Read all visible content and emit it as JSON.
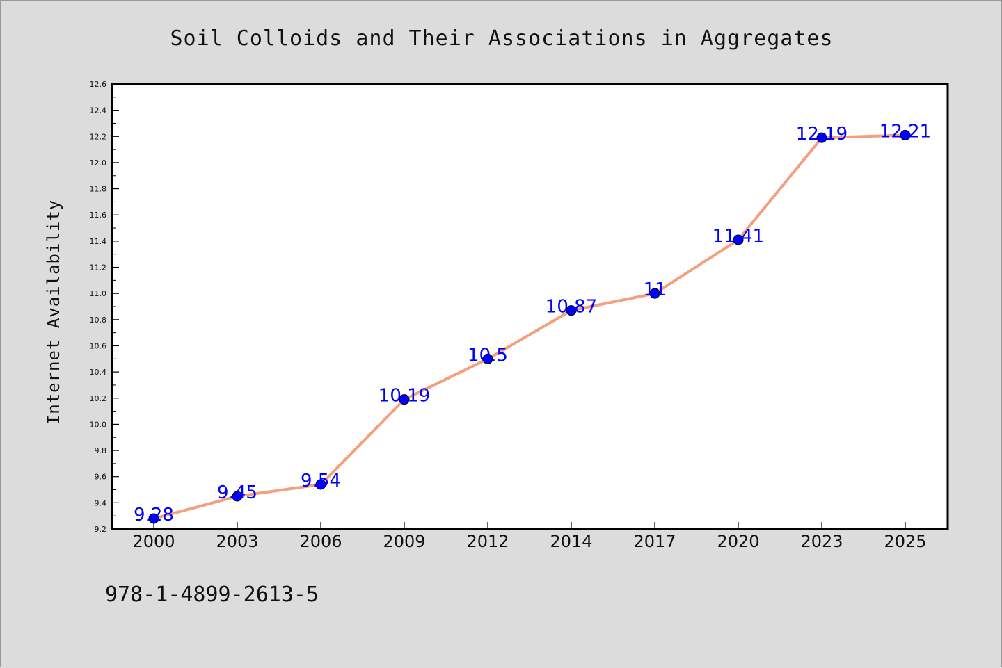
{
  "chart_data": {
    "type": "line",
    "title": "Soil Colloids and Their Associations in Aggregates",
    "xlabel": "",
    "ylabel": "Internet Availability",
    "categories": [
      "2000",
      "2003",
      "2006",
      "2009",
      "2012",
      "2014",
      "2017",
      "2020",
      "2023",
      "2025"
    ],
    "series": [
      {
        "values": [
          9.28,
          9.45,
          9.54,
          10.19,
          10.5,
          10.87,
          11,
          11.41,
          12.19,
          12.21
        ],
        "data_labels": [
          "9.28",
          "9.45",
          "9.54",
          "10.19",
          "10.5",
          "10.87",
          "11",
          "11.41",
          "12.19",
          "12.21"
        ]
      }
    ],
    "ylim": [
      9.2,
      12.6
    ],
    "yticks": [
      "9.2",
      "9.4",
      "9.6",
      "9.8",
      "10.0",
      "10.2",
      "10.4",
      "10.6",
      "10.8",
      "11.0",
      "11.2",
      "11.4",
      "11.6",
      "11.8",
      "12.0",
      "12.2",
      "12.4",
      "12.6"
    ],
    "grid": false,
    "colors": {
      "line": "#f4a07e",
      "marker": "#0000ff",
      "data_label": "#0000ff",
      "plot_background": "#ffffff",
      "page_background": "#dcdcdc"
    }
  },
  "footer": {
    "isbn": "978-1-4899-2613-5"
  }
}
